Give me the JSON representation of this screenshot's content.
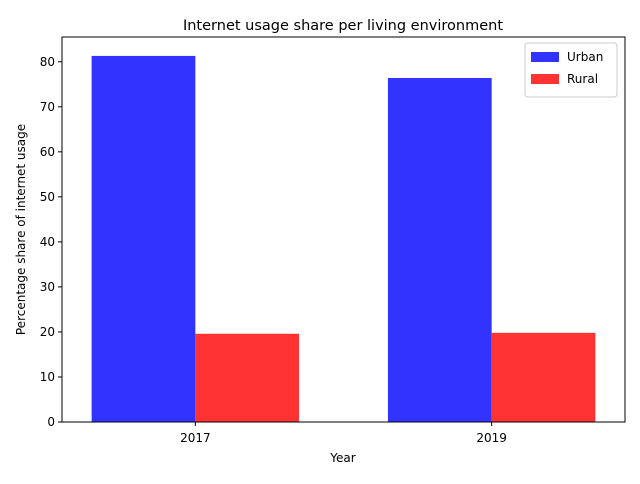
{
  "chart_data": {
    "type": "bar",
    "title": "Internet usage share per living environment",
    "xlabel": "Year",
    "ylabel": "Percentage share of internet usage",
    "categories": [
      "2017",
      "2019"
    ],
    "series": [
      {
        "name": "Urban",
        "values": [
          81.3,
          76.4
        ],
        "color": "#3333ff"
      },
      {
        "name": "Rural",
        "values": [
          19.6,
          19.8
        ],
        "color": "#ff3333"
      }
    ],
    "ylim": [
      0,
      85.5
    ],
    "yticks": [
      0,
      10,
      20,
      30,
      40,
      50,
      60,
      70,
      80
    ],
    "grid": false,
    "legend_position": "top-right"
  }
}
